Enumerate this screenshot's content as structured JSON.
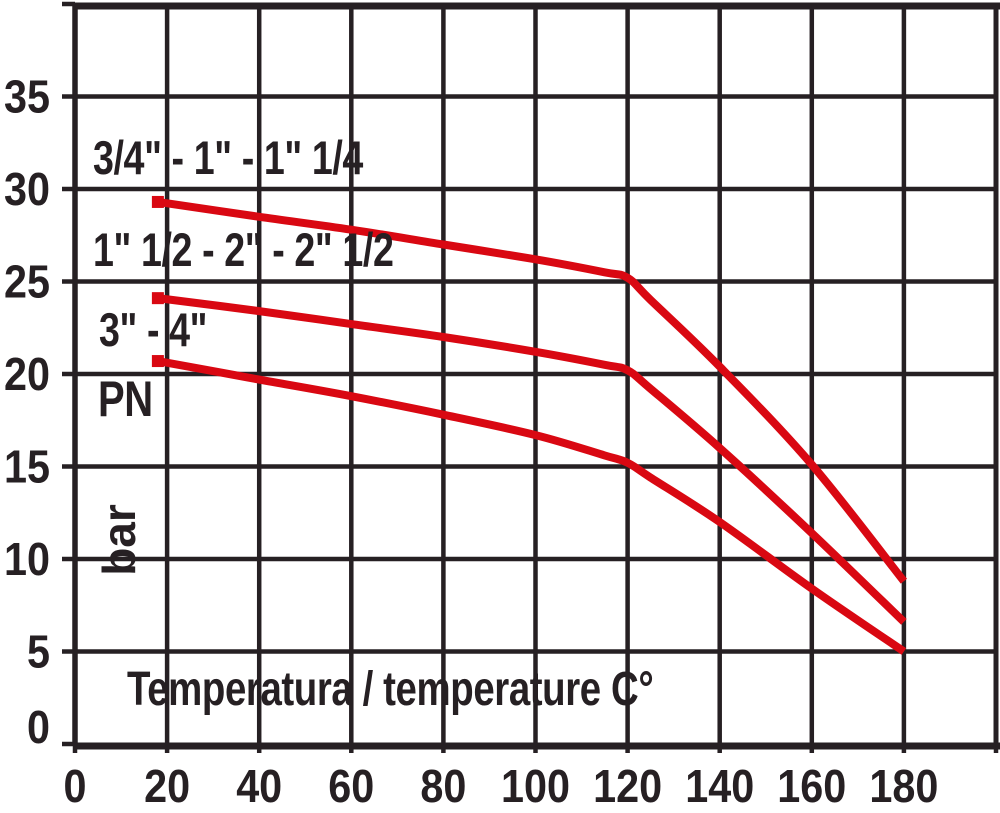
{
  "chart_data": {
    "type": "line",
    "title": "",
    "xlabel": "Temperatura / temperature C°",
    "ylabel_top": "PN",
    "ylabel_unit": "bar",
    "xlim": [
      0,
      200
    ],
    "ylim": [
      0,
      40
    ],
    "grid": true,
    "x_tick_values": [
      0,
      20,
      40,
      60,
      80,
      100,
      120,
      140,
      160,
      180,
      200
    ],
    "x_tick_labels": [
      "0",
      "20",
      "40",
      "60",
      "80",
      "100",
      "120",
      "140",
      "160",
      "180"
    ],
    "y_tick_values": [
      0,
      5,
      10,
      15,
      20,
      25,
      30,
      35,
      40
    ],
    "y_tick_labels": [
      "0",
      "5",
      "10",
      "15",
      "20",
      "25",
      "30",
      "35"
    ],
    "legend_position": "inline-left-of-curves",
    "colors": {
      "line": "#d90812",
      "grid": "#262023",
      "text": "#262023",
      "background": "#ffffff"
    },
    "series": [
      {
        "label": "3/4\" - 1\" - 1\" 1/4",
        "points": [
          [
            18,
            29.3
          ],
          [
            40,
            28.5
          ],
          [
            60,
            27.8
          ],
          [
            80,
            27.0
          ],
          [
            100,
            26.2
          ],
          [
            115,
            25.5
          ],
          [
            120,
            25.2
          ],
          [
            125,
            24.0
          ],
          [
            140,
            20.4
          ],
          [
            160,
            15.1
          ],
          [
            180,
            8.8
          ]
        ]
      },
      {
        "label": "1\" 1/2 - 2\" - 2\" 1/2",
        "points": [
          [
            18,
            24.1
          ],
          [
            40,
            23.4
          ],
          [
            60,
            22.7
          ],
          [
            80,
            22.0
          ],
          [
            100,
            21.2
          ],
          [
            115,
            20.5
          ],
          [
            120,
            20.2
          ],
          [
            125,
            19.2
          ],
          [
            140,
            16.0
          ],
          [
            160,
            11.4
          ],
          [
            180,
            6.6
          ]
        ]
      },
      {
        "label": "3\" - 4\"",
        "points": [
          [
            18,
            20.7
          ],
          [
            40,
            19.7
          ],
          [
            60,
            18.8
          ],
          [
            80,
            17.8
          ],
          [
            100,
            16.7
          ],
          [
            115,
            15.6
          ],
          [
            120,
            15.2
          ],
          [
            125,
            14.4
          ],
          [
            140,
            12.0
          ],
          [
            160,
            8.4
          ],
          [
            180,
            5.0
          ]
        ]
      }
    ]
  }
}
